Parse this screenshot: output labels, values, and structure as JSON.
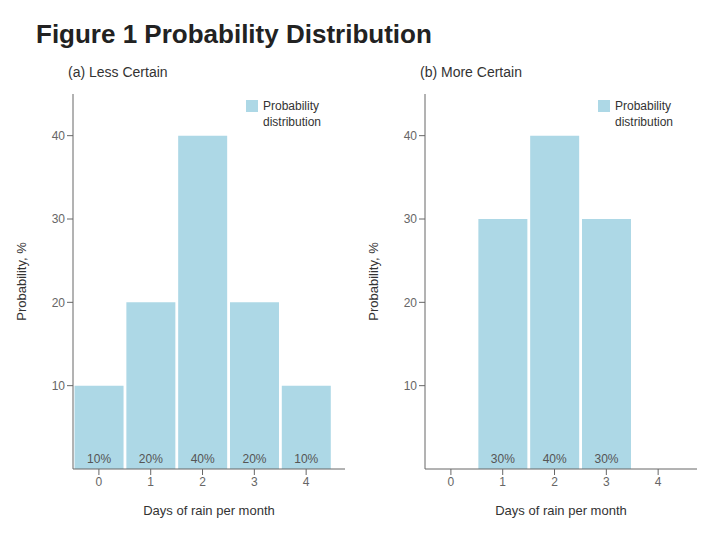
{
  "title": "Figure 1 Probability Distribution",
  "chart_data": [
    {
      "type": "bar",
      "title": "(a) Less Certain",
      "xlabel": "Days of rain per month",
      "ylabel": "Probability, %",
      "x": [
        0,
        1,
        2,
        3,
        4
      ],
      "series": [
        {
          "name": "Probability distribution",
          "color": "#add8e6",
          "values": [
            10,
            20,
            40,
            20,
            10
          ],
          "value_labels": [
            "10%",
            "20%",
            "40%",
            "20%",
            "10%"
          ]
        }
      ],
      "xlim": [
        -0.5,
        4.75
      ],
      "ylim": [
        0,
        45
      ],
      "xticks": [
        0,
        1,
        2,
        3,
        4
      ],
      "yticks": [
        10,
        20,
        30,
        40
      ],
      "grid": false,
      "legend": "upper right",
      "data_labels": true
    },
    {
      "type": "bar",
      "title": "(b) More Certain",
      "xlabel": "Days of rain per month",
      "ylabel": "Probability, %",
      "x": [
        0,
        1,
        2,
        3,
        4
      ],
      "series": [
        {
          "name": "Probability distribution",
          "color": "#add8e6",
          "values": [
            0,
            30,
            40,
            30,
            0
          ],
          "value_labels": [
            null,
            "30%",
            "40%",
            "30%",
            null
          ]
        }
      ],
      "xlim": [
        -0.5,
        4.75
      ],
      "ylim": [
        0,
        45
      ],
      "xticks": [
        0,
        1,
        2,
        3,
        4
      ],
      "yticks": [
        10,
        20,
        30,
        40
      ],
      "grid": false,
      "legend": "upper right",
      "data_labels": true
    }
  ]
}
